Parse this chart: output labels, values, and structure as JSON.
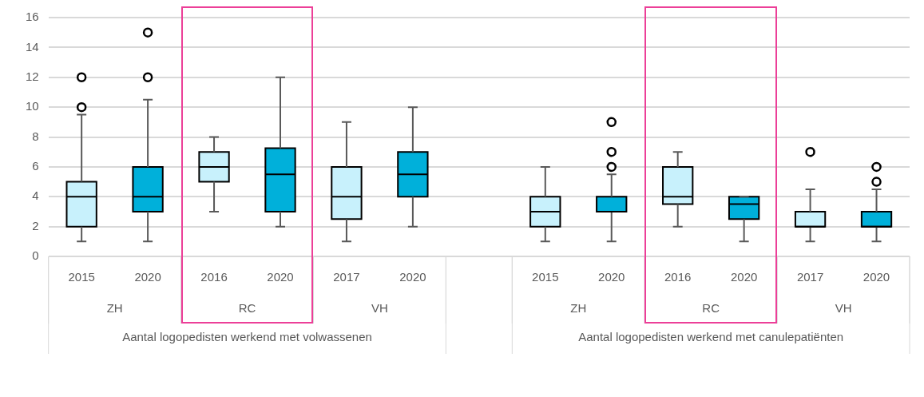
{
  "chart_data": {
    "type": "box",
    "categories": [
      "2015",
      "2020",
      "2016",
      "2020",
      "2017",
      "2020",
      null,
      "2015",
      "2020",
      "2016",
      "2020",
      "2017",
      "2020"
    ],
    "ylim": [
      0,
      16
    ],
    "yticks": [
      0,
      2,
      4,
      6,
      8,
      10,
      12,
      14,
      16
    ],
    "grid": "y",
    "annotations": [
      "ZH",
      "RC",
      "VH",
      "Aantal logopedisten werkend met volwassenen",
      "ZH",
      "RC",
      "VH",
      "Aantal logopedisten werkend met canulepatiënten"
    ],
    "series": [
      {
        "color": "#c8f1fc",
        "boxes": [
          {
            "low": 1,
            "q1": 2,
            "median": 4,
            "q3": 5,
            "high": 9.5,
            "outliers": [
              10,
              12
            ]
          },
          null,
          {
            "low": 3,
            "q1": 5,
            "median": 6,
            "q3": 7,
            "high": 8
          },
          null,
          {
            "low": 1,
            "q1": 2.5,
            "median": 4,
            "q3": 6,
            "high": 9
          },
          null,
          null,
          {
            "low": 1,
            "q1": 2,
            "median": 3,
            "q3": 4,
            "high": 6
          },
          null,
          {
            "low": 2,
            "q1": 3.5,
            "median": 4,
            "q3": 6,
            "high": 7
          },
          null,
          {
            "low": 1,
            "q1": 2,
            "median": 2,
            "q3": 3,
            "high": 4.5,
            "outliers": [
              7
            ]
          },
          null
        ]
      },
      {
        "color": "#00b0da",
        "boxes": [
          null,
          {
            "low": 1,
            "q1": 3,
            "median": 4,
            "q3": 6,
            "high": 10.5,
            "outliers": [
              12,
              15
            ]
          },
          null,
          {
            "low": 2,
            "q1": 3,
            "median": 5.5,
            "q3": 7.25,
            "high": 12
          },
          null,
          {
            "low": 2,
            "q1": 4,
            "median": 5.5,
            "q3": 7,
            "high": 10
          },
          null,
          null,
          {
            "low": 1,
            "q1": 3,
            "median": 3,
            "q3": 4,
            "high": 5.5,
            "outliers": [
              6,
              7,
              9
            ]
          },
          null,
          {
            "low": 1,
            "q1": 2.5,
            "median": 3.5,
            "q3": 4,
            "high": 4
          },
          null,
          {
            "low": 1,
            "q1": 2,
            "median": 2,
            "q3": 3,
            "high": 4.5,
            "outliers": [
              5,
              6
            ]
          }
        ]
      }
    ]
  }
}
